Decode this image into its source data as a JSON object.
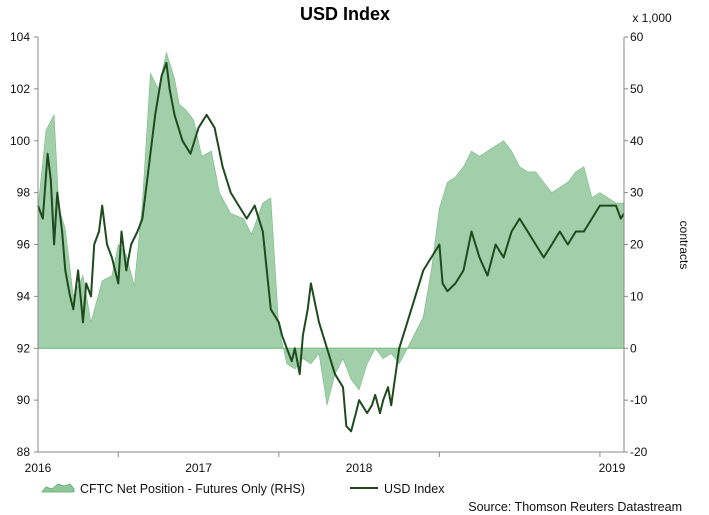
{
  "chart_data": {
    "type": "line",
    "title": "USD Index",
    "x_tick_labels": [
      "2016",
      "2017",
      "2018",
      "2019"
    ],
    "left_axis": {
      "ylim": [
        88,
        104
      ],
      "ticks": [
        88,
        90,
        92,
        94,
        96,
        98,
        100,
        102,
        104
      ]
    },
    "right_axis": {
      "label": "contracts",
      "unit_note": "x 1,000",
      "ylim": [
        -20,
        60
      ],
      "ticks": [
        -20,
        -10,
        0,
        10,
        20,
        30,
        40,
        50,
        60
      ]
    },
    "grid": false,
    "legend_position": "bottom",
    "source": "Source: Thomson Reuters Datastream",
    "series": [
      {
        "name": "CFTC Net Position - Futures Only (RHS)",
        "kind": "area",
        "axis": "right",
        "color": "#8fc79a",
        "x": [
          2015.5,
          2015.55,
          2015.6,
          2015.63,
          2015.67,
          2015.72,
          2015.78,
          2015.83,
          2015.9,
          2015.96,
          2016.0,
          2016.05,
          2016.1,
          2016.15,
          2016.2,
          2016.25,
          2016.3,
          2016.35,
          2016.38,
          2016.42,
          2016.47,
          2016.52,
          2016.58,
          2016.63,
          2016.7,
          2016.78,
          2016.83,
          2016.9,
          2016.95,
          2017.0,
          2017.05,
          2017.1,
          2017.15,
          2017.2,
          2017.25,
          2017.3,
          2017.35,
          2017.4,
          2017.45,
          2017.5,
          2017.55,
          2017.6,
          2017.65,
          2017.7,
          2017.75,
          2017.8,
          2017.85,
          2017.9,
          2017.95,
          2018.0,
          2018.05,
          2018.1,
          2018.15,
          2018.2,
          2018.25,
          2018.3,
          2018.35,
          2018.4,
          2018.45,
          2018.5,
          2018.55,
          2018.6,
          2018.65,
          2018.7,
          2018.75,
          2018.8,
          2018.85,
          2018.9,
          2018.95,
          2019.0,
          2019.05,
          2019.1,
          2019.15
        ],
        "values": [
          27,
          42,
          45,
          27,
          23,
          10,
          14,
          5,
          13,
          14,
          20,
          18,
          12,
          28,
          53,
          50,
          57,
          52,
          47,
          46,
          44,
          37,
          38,
          30,
          26,
          25,
          22,
          28,
          29,
          4,
          -3,
          -4,
          -2,
          -3,
          -1,
          -11,
          -5,
          -2,
          -6,
          -8,
          -3,
          0,
          -2,
          -1,
          -3,
          0,
          3,
          6,
          15,
          27,
          32,
          33,
          35,
          38,
          37,
          38,
          39,
          40,
          38,
          35,
          34,
          34,
          32,
          30,
          31,
          32,
          34,
          35,
          29,
          30,
          29,
          28,
          28
        ]
      },
      {
        "name": "USD Index",
        "kind": "line",
        "axis": "left",
        "color": "#1e4a1e",
        "x": [
          2015.5,
          2015.53,
          2015.56,
          2015.58,
          2015.6,
          2015.62,
          2015.65,
          2015.67,
          2015.7,
          2015.72,
          2015.75,
          2015.78,
          2015.8,
          2015.83,
          2015.85,
          2015.88,
          2015.9,
          2015.93,
          2015.96,
          2016.0,
          2016.02,
          2016.05,
          2016.08,
          2016.12,
          2016.15,
          2016.2,
          2016.23,
          2016.27,
          2016.3,
          2016.32,
          2016.35,
          2016.4,
          2016.45,
          2016.5,
          2016.55,
          2016.6,
          2016.65,
          2016.7,
          2016.75,
          2016.8,
          2016.85,
          2016.9,
          2016.95,
          2017.0,
          2017.02,
          2017.05,
          2017.08,
          2017.1,
          2017.13,
          2017.15,
          2017.18,
          2017.2,
          2017.25,
          2017.3,
          2017.35,
          2017.4,
          2017.42,
          2017.45,
          2017.48,
          2017.5,
          2017.55,
          2017.58,
          2017.6,
          2017.63,
          2017.65,
          2017.68,
          2017.7,
          2017.75,
          2017.8,
          2017.85,
          2017.9,
          2017.95,
          2018.0,
          2018.02,
          2018.05,
          2018.1,
          2018.15,
          2018.2,
          2018.25,
          2018.3,
          2018.35,
          2018.4,
          2018.45,
          2018.5,
          2018.55,
          2018.6,
          2018.65,
          2018.7,
          2018.75,
          2018.8,
          2018.85,
          2018.9,
          2018.95,
          2019.0,
          2019.05,
          2019.1,
          2019.13,
          2019.15
        ],
        "values": [
          97.5,
          97.0,
          99.5,
          98.5,
          96.0,
          98.0,
          96.5,
          95.0,
          94.0,
          93.5,
          95.0,
          93.0,
          94.5,
          94.0,
          96.0,
          96.5,
          97.5,
          96.0,
          95.5,
          94.5,
          96.5,
          95.0,
          96.0,
          96.5,
          97.0,
          99.5,
          101.0,
          102.5,
          103.0,
          102.0,
          101.0,
          100.0,
          99.5,
          100.5,
          101.0,
          100.5,
          99.0,
          98.0,
          97.5,
          97.0,
          97.5,
          96.5,
          93.5,
          93.0,
          92.5,
          92.0,
          91.5,
          92.0,
          91.0,
          92.5,
          93.5,
          94.5,
          93.0,
          92.0,
          91.0,
          90.5,
          89.0,
          88.8,
          89.5,
          90.0,
          89.5,
          89.8,
          90.2,
          89.5,
          90.0,
          90.5,
          89.8,
          92.0,
          93.0,
          94.0,
          95.0,
          95.5,
          96.0,
          94.5,
          94.2,
          94.5,
          95.0,
          96.5,
          95.5,
          94.8,
          96.0,
          95.5,
          96.5,
          97.0,
          96.5,
          96.0,
          95.5,
          96.0,
          96.5,
          96.0,
          96.5,
          96.5,
          97.0,
          97.5,
          97.5,
          97.5,
          97.0,
          97.2
        ]
      }
    ]
  }
}
